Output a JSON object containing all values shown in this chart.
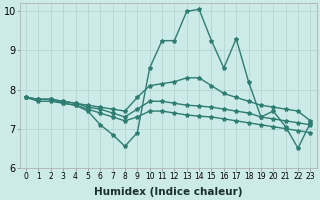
{
  "xlabel": "Humidex (Indice chaleur)",
  "xlim": [
    -0.5,
    23.5
  ],
  "ylim": [
    6,
    10.2
  ],
  "yticks": [
    6,
    7,
    8,
    9,
    10
  ],
  "xticks": [
    0,
    1,
    2,
    3,
    4,
    5,
    6,
    7,
    8,
    9,
    10,
    11,
    12,
    13,
    14,
    15,
    16,
    17,
    18,
    19,
    20,
    21,
    22,
    23
  ],
  "background_color": "#cceae7",
  "grid_color": "#b8d8d5",
  "line_color": "#2e7d72",
  "lines": [
    [
      7.8,
      7.75,
      7.75,
      7.7,
      7.65,
      7.6,
      7.55,
      7.5,
      7.45,
      7.8,
      8.1,
      8.15,
      8.2,
      8.3,
      8.3,
      8.1,
      7.9,
      7.8,
      7.7,
      7.6,
      7.55,
      7.5,
      7.45,
      7.2
    ],
    [
      7.8,
      7.75,
      7.75,
      7.7,
      7.65,
      7.55,
      7.5,
      7.4,
      7.3,
      7.5,
      7.7,
      7.7,
      7.65,
      7.6,
      7.58,
      7.55,
      7.5,
      7.45,
      7.4,
      7.3,
      7.25,
      7.2,
      7.15,
      7.1
    ],
    [
      7.8,
      7.75,
      7.75,
      7.65,
      7.6,
      7.5,
      7.4,
      7.3,
      7.2,
      7.3,
      7.45,
      7.45,
      7.4,
      7.35,
      7.32,
      7.3,
      7.25,
      7.2,
      7.15,
      7.1,
      7.05,
      7.0,
      6.95,
      6.9
    ],
    [
      7.8,
      7.7,
      7.7,
      7.65,
      7.6,
      7.45,
      7.1,
      6.85,
      6.55,
      6.9,
      8.55,
      9.25,
      9.25,
      10.0,
      10.05,
      9.25,
      8.55,
      9.3,
      8.2,
      7.3,
      7.45,
      7.05,
      6.5,
      7.15
    ]
  ],
  "marker": "*",
  "markersize": 3.0,
  "linewidth": 1.0,
  "tick_fontsize_x": 5.5,
  "tick_fontsize_y": 7.0,
  "xlabel_fontsize": 7.5
}
